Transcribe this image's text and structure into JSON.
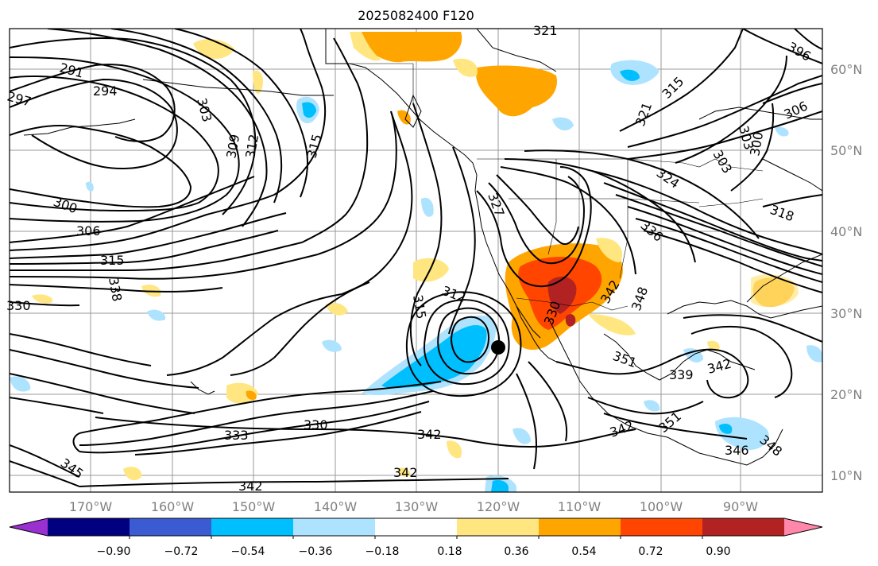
{
  "title": "2025082400 F120",
  "map": {
    "lon_labels": [
      "170°W",
      "160°W",
      "150°W",
      "140°W",
      "130°W",
      "120°W",
      "110°W",
      "100°W",
      "90°W"
    ],
    "lat_labels": [
      "60°N",
      "50°N",
      "40°N",
      "30°N",
      "20°N",
      "10°N"
    ],
    "contour_labels": [
      "291",
      "294",
      "297",
      "303",
      "309",
      "312",
      "315",
      "321",
      "300",
      "306",
      "315",
      "330",
      "338",
      "312",
      "315",
      "327",
      "324",
      "336",
      "342",
      "348",
      "330",
      "339",
      "351",
      "333",
      "330",
      "342",
      "342",
      "345",
      "342",
      "342",
      "351",
      "342",
      "346",
      "348",
      "306",
      "303",
      "315",
      "321",
      "303",
      "300",
      "318",
      "396"
    ],
    "station_marker": "black-dot"
  },
  "colorbar": {
    "ticks": [
      "−0.90",
      "−0.72",
      "−0.54",
      "−0.36",
      "−0.18",
      "0.18",
      "0.36",
      "0.54",
      "0.72",
      "0.90"
    ],
    "colors": [
      "#9b30d0",
      "#000080",
      "#3a5bd1",
      "#00bfff",
      "#aee3ff",
      "#ffffff",
      "#ffe680",
      "#ffa500",
      "#ff4500",
      "#b22222",
      "#ff88aa"
    ]
  }
}
